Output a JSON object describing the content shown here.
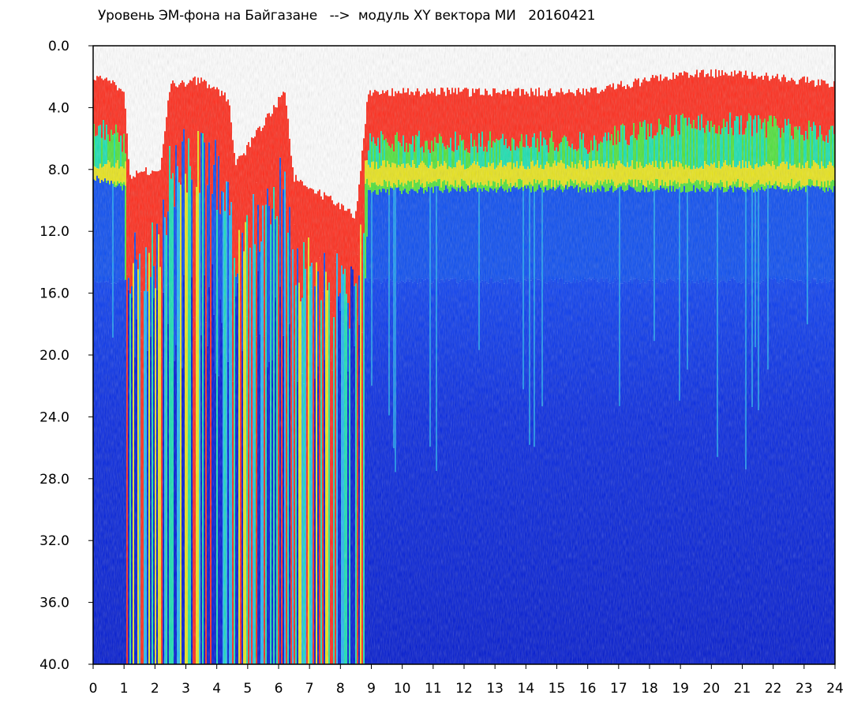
{
  "chart_data": {
    "type": "heatmap",
    "title": "Уровень ЭМ-фона на Байгазане   -->  модуль XY вектора МИ   20160421",
    "xlabel": "",
    "ylabel": "",
    "xlim": [
      0,
      24
    ],
    "ylim": [
      40,
      0
    ],
    "y_inverted": true,
    "x_ticks": [
      "0",
      "1",
      "2",
      "3",
      "4",
      "5",
      "6",
      "7",
      "8",
      "9",
      "10",
      "11",
      "12",
      "13",
      "14",
      "15",
      "16",
      "17",
      "18",
      "19",
      "20",
      "21",
      "22",
      "23",
      "24"
    ],
    "y_ticks": [
      "0.0",
      "4.0",
      "8.0",
      "12.0",
      "16.0",
      "20.0",
      "24.0",
      "28.0",
      "32.0",
      "36.0",
      "40.0"
    ],
    "colormap": [
      "#0019d6",
      "#0a4cf0",
      "#22b8f0",
      "#18e0b0",
      "#4ee23a",
      "#e8e41a",
      "#ff2a1a"
    ],
    "background_level_color": "#0019d6",
    "grid": false,
    "legend": "none",
    "band_profile": [
      {
        "x": 0.0,
        "top": 2.1,
        "green_to": 8.3
      },
      {
        "x": 0.5,
        "top": 2.2,
        "green_to": 8.5
      },
      {
        "x": 1.0,
        "top": 3.0,
        "green_to": 9.0
      },
      {
        "x": 1.2,
        "top": 8.5,
        "green_to": 40.0
      },
      {
        "x": 2.2,
        "top": 7.8,
        "green_to": 40.0
      },
      {
        "x": 2.5,
        "top": 2.5,
        "green_to": 40.0
      },
      {
        "x": 3.5,
        "top": 2.2,
        "green_to": 40.0
      },
      {
        "x": 4.4,
        "top": 3.5,
        "green_to": 40.0
      },
      {
        "x": 4.6,
        "top": 7.8,
        "green_to": 40.0
      },
      {
        "x": 6.2,
        "top": 3.0,
        "green_to": 40.0
      },
      {
        "x": 6.5,
        "top": 8.5,
        "green_to": 40.0
      },
      {
        "x": 8.5,
        "top": 11.0,
        "green_to": 40.0
      },
      {
        "x": 8.9,
        "top": 3.0,
        "green_to": 9.2
      },
      {
        "x": 12.0,
        "top": 3.0,
        "green_to": 9.0
      },
      {
        "x": 16.0,
        "top": 3.0,
        "green_to": 9.0
      },
      {
        "x": 17.0,
        "top": 2.6,
        "green_to": 9.0
      },
      {
        "x": 19.0,
        "top": 1.8,
        "green_to": 9.0
      },
      {
        "x": 21.0,
        "top": 1.8,
        "green_to": 9.0
      },
      {
        "x": 24.0,
        "top": 2.5,
        "green_to": 9.0
      }
    ]
  }
}
